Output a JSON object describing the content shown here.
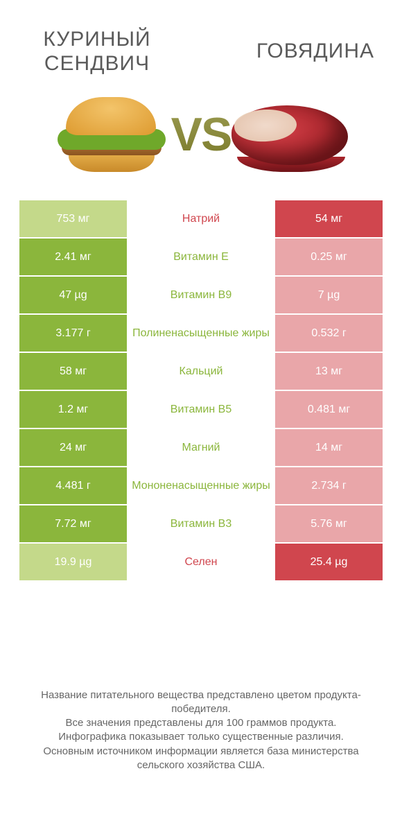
{
  "titles": {
    "left": "КУРИНЫЙ\nСЕНДВИЧ",
    "right": "ГОВЯДИНА",
    "vs": "VS"
  },
  "colors": {
    "left_win": "#8bb63c",
    "left_lose": "#c4d98a",
    "right_win": "#d0464e",
    "right_lose": "#e9a6a9",
    "mid_green": "#8bb63c",
    "mid_red": "#d0464e",
    "text": "#ffffff"
  },
  "rows": [
    {
      "name": "Натрий",
      "left": "753 мг",
      "right": "54 мг",
      "winner": "right",
      "label_color": "red"
    },
    {
      "name": "Витамин E",
      "left": "2.41 мг",
      "right": "0.25 мг",
      "winner": "left",
      "label_color": "green"
    },
    {
      "name": "Витамин B9",
      "left": "47 µg",
      "right": "7 µg",
      "winner": "left",
      "label_color": "green"
    },
    {
      "name": "Полиненасыщенные жиры",
      "left": "3.177 г",
      "right": "0.532 г",
      "winner": "left",
      "label_color": "green"
    },
    {
      "name": "Кальций",
      "left": "58 мг",
      "right": "13 мг",
      "winner": "left",
      "label_color": "green"
    },
    {
      "name": "Витамин B5",
      "left": "1.2 мг",
      "right": "0.481 мг",
      "winner": "left",
      "label_color": "green"
    },
    {
      "name": "Магний",
      "left": "24 мг",
      "right": "14 мг",
      "winner": "left",
      "label_color": "green"
    },
    {
      "name": "Мононенасыщенные жиры",
      "left": "4.481 г",
      "right": "2.734 г",
      "winner": "left",
      "label_color": "green"
    },
    {
      "name": "Витамин B3",
      "left": "7.72 мг",
      "right": "5.76 мг",
      "winner": "left",
      "label_color": "green"
    },
    {
      "name": "Селен",
      "left": "19.9 µg",
      "right": "25.4 µg",
      "winner": "right",
      "label_color": "red"
    }
  ],
  "footer": [
    "Название питательного вещества представлено цветом продукта-победителя.",
    "Все значения представлены для 100 граммов продукта.",
    "Инфографика показывает только существенные различия.",
    "Основным источником информации является база министерства сельского хозяйства США."
  ]
}
